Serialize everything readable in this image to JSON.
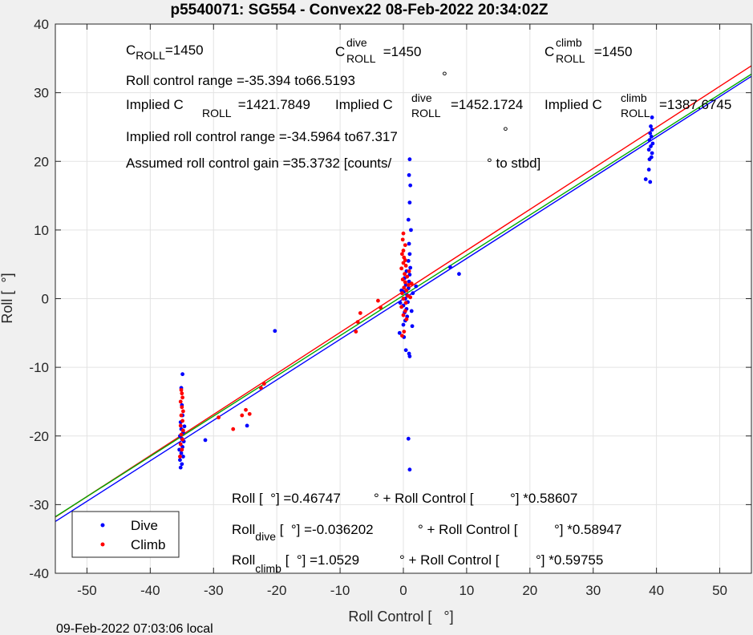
{
  "chart_data": {
    "type": "scatter",
    "title": "p5540071: SG554 - Convex22 08-Feb-2022 20:34:02Z",
    "xlabel": "Roll Control [   °]",
    "ylabel": "Roll [  °]",
    "xlim": [
      -55,
      55
    ],
    "ylim": [
      -40,
      40
    ],
    "xticks": [
      -50,
      -40,
      -30,
      -20,
      -10,
      0,
      10,
      20,
      30,
      40,
      50
    ],
    "yticks": [
      -40,
      -30,
      -20,
      -10,
      0,
      10,
      20,
      30,
      40
    ],
    "grid": true,
    "legend_position": "bottom-left",
    "footer": "09-Feb-2022 07:03:06 local",
    "series": [
      {
        "name": "Dive",
        "color": "#0000ff",
        "points": [
          [
            -35.2,
            -24.6
          ],
          [
            -35.0,
            -24.1
          ],
          [
            -35.3,
            -23.5
          ],
          [
            -34.8,
            -23.0
          ],
          [
            -35.1,
            -22.5
          ],
          [
            -35.4,
            -22.0
          ],
          [
            -34.9,
            -21.6
          ],
          [
            -35.2,
            -21.2
          ],
          [
            -34.7,
            -20.8
          ],
          [
            -35.0,
            -20.4
          ],
          [
            -35.3,
            -20.0
          ],
          [
            -34.8,
            -19.5
          ],
          [
            -35.1,
            -19.0
          ],
          [
            -34.6,
            -18.6
          ],
          [
            -35.2,
            -18.0
          ],
          [
            -34.9,
            -17.0
          ],
          [
            -35.0,
            -15.5
          ],
          [
            -35.1,
            -13.0
          ],
          [
            -34.9,
            -11.0
          ],
          [
            -31.3,
            -20.6
          ],
          [
            -24.7,
            -18.5
          ],
          [
            -20.3,
            -4.7
          ],
          [
            -0.6,
            -5.0
          ],
          [
            0.1,
            -5.6
          ],
          [
            0.4,
            -7.5
          ],
          [
            0.9,
            -8.0
          ],
          [
            1.0,
            -8.4
          ],
          [
            0.8,
            -20.4
          ],
          [
            1.0,
            -24.9
          ],
          [
            0.0,
            -3.8
          ],
          [
            0.3,
            -3.2
          ],
          [
            0.6,
            -2.6
          ],
          [
            0.2,
            -2.0
          ],
          [
            0.5,
            -1.5
          ],
          [
            0.0,
            -1.0
          ],
          [
            0.7,
            -0.5
          ],
          [
            0.3,
            0.0
          ],
          [
            0.6,
            0.5
          ],
          [
            0.1,
            1.0
          ],
          [
            0.8,
            1.5
          ],
          [
            0.4,
            2.0
          ],
          [
            0.9,
            2.5
          ],
          [
            0.2,
            3.0
          ],
          [
            1.0,
            3.5
          ],
          [
            0.5,
            4.0
          ],
          [
            1.1,
            4.5
          ],
          [
            0.8,
            5.5
          ],
          [
            1.0,
            6.5
          ],
          [
            0.9,
            8.0
          ],
          [
            1.2,
            10.0
          ],
          [
            0.8,
            11.5
          ],
          [
            1.0,
            14.0
          ],
          [
            1.1,
            16.5
          ],
          [
            0.9,
            18.0
          ],
          [
            1.0,
            20.3
          ],
          [
            1.3,
            -1.8
          ],
          [
            1.5,
            0.8
          ],
          [
            2.0,
            1.8
          ],
          [
            1.4,
            -4.0
          ],
          [
            -0.3,
            1.2
          ],
          [
            -0.5,
            -0.6
          ],
          [
            7.4,
            4.6
          ],
          [
            8.8,
            3.6
          ],
          [
            39.0,
            17.0
          ],
          [
            38.3,
            17.4
          ],
          [
            38.8,
            18.8
          ],
          [
            38.9,
            20.3
          ],
          [
            39.2,
            20.6
          ],
          [
            39.3,
            21.2
          ],
          [
            38.8,
            21.7
          ],
          [
            39.1,
            22.2
          ],
          [
            39.4,
            22.6
          ],
          [
            38.9,
            23.1
          ],
          [
            39.2,
            23.6
          ],
          [
            39.0,
            24.1
          ],
          [
            39.3,
            24.6
          ],
          [
            39.1,
            25.1
          ],
          [
            39.3,
            26.4
          ]
        ]
      },
      {
        "name": "Climb",
        "color": "#ff0000",
        "points": [
          [
            -35.3,
            -23.0
          ],
          [
            -35.0,
            -22.0
          ],
          [
            -35.2,
            -21.2
          ],
          [
            -34.9,
            -20.5
          ],
          [
            -35.1,
            -19.8
          ],
          [
            -34.8,
            -19.2
          ],
          [
            -35.2,
            -18.5
          ],
          [
            -34.9,
            -17.8
          ],
          [
            -35.1,
            -17.0
          ],
          [
            -34.8,
            -16.4
          ],
          [
            -35.0,
            -15.8
          ],
          [
            -35.2,
            -15.0
          ],
          [
            -34.9,
            -14.4
          ],
          [
            -35.0,
            -13.8
          ],
          [
            -35.1,
            -13.3
          ],
          [
            -29.2,
            -17.3
          ],
          [
            -26.9,
            -19.0
          ],
          [
            -25.5,
            -17.0
          ],
          [
            -24.9,
            -16.2
          ],
          [
            -24.3,
            -16.8
          ],
          [
            -22.5,
            -13.0
          ],
          [
            -22.0,
            -12.4
          ],
          [
            -7.5,
            -4.8
          ],
          [
            -7.2,
            -3.4
          ],
          [
            -6.8,
            -2.1
          ],
          [
            -4.0,
            -0.3
          ],
          [
            -3.6,
            -1.3
          ],
          [
            -0.2,
            -5.4
          ],
          [
            0.1,
            -4.8
          ],
          [
            0.5,
            -3.0
          ],
          [
            0.0,
            -2.4
          ],
          [
            0.3,
            -1.8
          ],
          [
            -0.3,
            -1.2
          ],
          [
            0.4,
            -0.6
          ],
          [
            0.0,
            0.0
          ],
          [
            0.7,
            0.4
          ],
          [
            -0.2,
            0.8
          ],
          [
            0.5,
            1.2
          ],
          [
            0.1,
            1.6
          ],
          [
            0.8,
            2.0
          ],
          [
            0.3,
            2.4
          ],
          [
            -0.1,
            2.8
          ],
          [
            0.6,
            3.2
          ],
          [
            0.2,
            3.6
          ],
          [
            0.9,
            4.0
          ],
          [
            -0.3,
            4.4
          ],
          [
            0.4,
            4.8
          ],
          [
            0.0,
            5.2
          ],
          [
            0.3,
            5.6
          ],
          [
            0.1,
            6.0
          ],
          [
            -0.2,
            6.5
          ],
          [
            0.0,
            7.0
          ],
          [
            0.3,
            7.8
          ],
          [
            -0.1,
            8.6
          ],
          [
            0.0,
            9.5
          ],
          [
            1.3,
            2.2
          ],
          [
            1.1,
            0.2
          ]
        ]
      }
    ],
    "fit_lines": [
      {
        "color": "#ff0000",
        "intercept": 1.0529,
        "slope": 0.59755
      },
      {
        "color": "#00aa00",
        "intercept": 0.46747,
        "slope": 0.58607
      },
      {
        "color": "#0000ff",
        "intercept": -0.036202,
        "slope": 0.58947
      }
    ],
    "annotations": {
      "c_roll": {
        "main": "C",
        "sub": "ROLL",
        "val": "=1450"
      },
      "c_roll_dive": {
        "main": "C",
        "sup": "dive",
        "sub": "ROLL",
        "val": " =1450"
      },
      "c_roll_climb": {
        "main": "C",
        "sup": "climb",
        "sub": "ROLL",
        "val": " =1450"
      },
      "range": "Roll control range =-35.394 to66.5193",
      "implied_1_main": "Implied C",
      "implied_1_sub": "ROLL",
      "implied_1_val": " =1421.7849",
      "implied_2_main": "Implied C",
      "implied_2_sup": "dive",
      "implied_2_sub": "ROLL",
      "implied_2_val": "=1452.1724",
      "implied_3_main": "Implied C",
      "implied_3_sup": "climb",
      "implied_3_sub": "ROLL",
      "implied_3_val": "=1387.6745",
      "implied_range": "Implied roll control range =-34.5964 to67.317",
      "gain_a": "Assumed roll control gain =35.3732 [counts/",
      "gain_b": "° to stbd]",
      "deg": "°",
      "eq1_a": "Roll [  °] =0.46747",
      "eq1_b": "° + Roll Control [",
      "eq1_c": "°] *0.58607",
      "eq2_main": "Roll",
      "eq2_sub": "dive",
      "eq2_a": " [  °] =-0.036202",
      "eq2_b": "° + Roll Control [",
      "eq2_c": "°] *0.58947",
      "eq3_main": "Roll",
      "eq3_sub": "climb",
      "eq3_a": " [  °] =1.0529",
      "eq3_b": "° + Roll Control [",
      "eq3_c": "°] *0.59755"
    }
  }
}
